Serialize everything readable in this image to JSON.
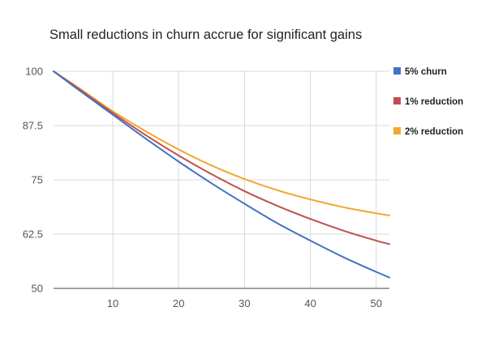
{
  "chart_data": {
    "type": "line",
    "title": "Small reductions in churn accrue for significant gains",
    "xlabel": "",
    "ylabel": "",
    "xlim": [
      1,
      52
    ],
    "ylim": [
      50,
      100
    ],
    "x_ticks": [
      10,
      20,
      30,
      40,
      50
    ],
    "y_ticks": [
      50,
      62.5,
      75,
      87.5,
      100
    ],
    "x_tick_labels": [
      "10",
      "20",
      "30",
      "40",
      "50"
    ],
    "y_tick_labels": [
      "50",
      "62.5",
      "75",
      "87.5",
      "100"
    ],
    "grid": true,
    "legend_position": "right",
    "x": [
      1,
      5,
      10,
      15,
      20,
      25,
      30,
      35,
      40,
      45,
      50,
      52
    ],
    "series": [
      {
        "name": "5% churn",
        "color": "#4472C4",
        "values": [
          100,
          95.5,
          90.0,
          84.5,
          79.2,
          74.2,
          69.5,
          65.0,
          61.0,
          57.2,
          53.8,
          52.5
        ]
      },
      {
        "name": "1% reduction",
        "color": "#C0504D",
        "values": [
          100,
          95.8,
          90.4,
          85.3,
          80.6,
          76.3,
          72.4,
          69.0,
          66.0,
          63.3,
          61.0,
          60.2
        ]
      },
      {
        "name": "2% reduction",
        "color": "#F0A830",
        "values": [
          100,
          96.0,
          90.8,
          86.2,
          82.0,
          78.3,
          75.2,
          72.6,
          70.5,
          68.7,
          67.3,
          66.8
        ]
      }
    ]
  }
}
